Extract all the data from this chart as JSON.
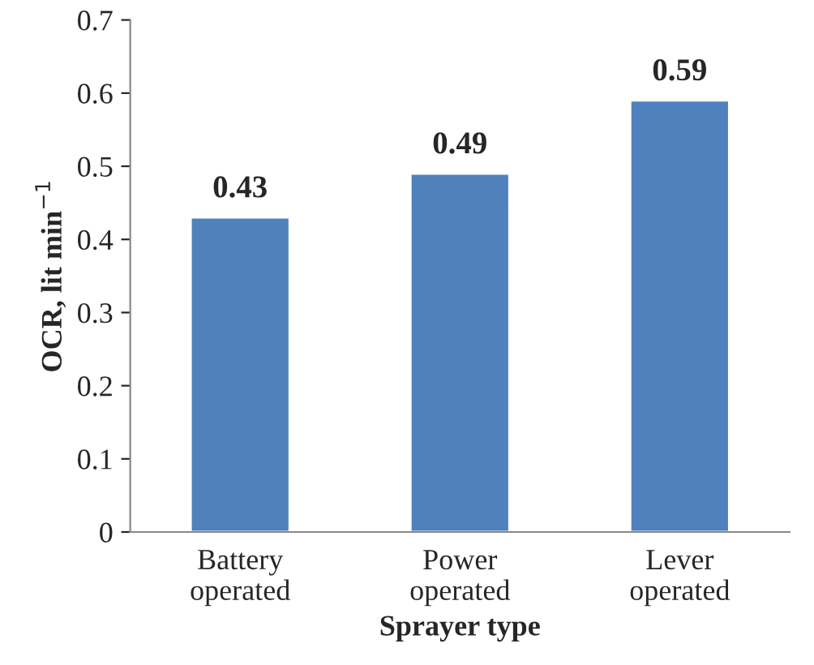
{
  "chart_data": {
    "type": "bar",
    "xlabel": "Sprayer type",
    "ylabel": "OCR, lit min$^{−1}$",
    "categories": [
      "Battery\noperated",
      "Power\noperated",
      "Lever\noperated"
    ],
    "values": [
      0.43,
      0.49,
      0.59
    ],
    "color": "#4f81bd",
    "ylim": [
      0,
      0.7
    ],
    "yticks": [
      0,
      0.1,
      0.2,
      0.3,
      0.4,
      0.5,
      0.6,
      0.7
    ],
    "data_labels": true,
    "grid": false,
    "legend": false
  }
}
